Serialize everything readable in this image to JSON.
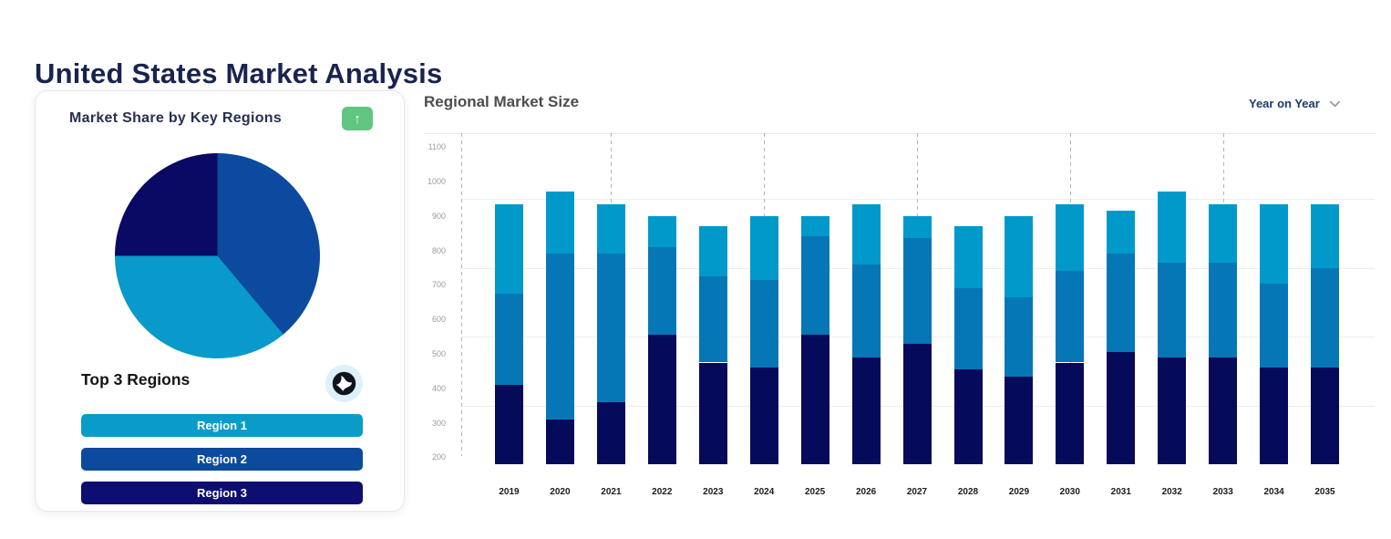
{
  "page": {
    "title": "United States Market Analysis"
  },
  "card": {
    "title": "Market Share by Key Regions",
    "trend_button": {
      "icon": "arrow-up",
      "color": "#5fc57f",
      "glyph": "↑"
    },
    "subheading": "Top 3 Regions",
    "globe_button": {
      "icon": "globe"
    },
    "legend": [
      {
        "label": "Region 1",
        "color": "#0a9cc9"
      },
      {
        "label": "Region 2",
        "color": "#0b4a9c"
      },
      {
        "label": "Region 3",
        "color": "#0d0d72"
      }
    ]
  },
  "regional": {
    "title": "Regional Market Size",
    "dropdown": {
      "label": "Year on Year",
      "icon": "chevron-down"
    }
  },
  "chart_data": [
    {
      "type": "pie",
      "title": "Market Share by Key Regions",
      "slices": [
        {
          "label": "Region 2",
          "color": "#0b4a9e",
          "start_deg": 0,
          "end_deg": 140,
          "share_pct": 38.9
        },
        {
          "label": "Region 1",
          "color": "#0999ca",
          "start_deg": 140,
          "end_deg": 270,
          "share_pct": 36.1
        },
        {
          "label": "Region 3",
          "color": "#0a0a64",
          "start_deg": 270,
          "end_deg": 360,
          "share_pct": 25.0
        }
      ]
    },
    {
      "type": "bar",
      "stacked": true,
      "title": "Regional Market Size",
      "categories": [
        "2019",
        "2020",
        "2021",
        "2022",
        "2023",
        "2024",
        "2025",
        "2026",
        "2027",
        "2028",
        "2029",
        "2030",
        "2031",
        "2032",
        "2033",
        "2034",
        "2035"
      ],
      "baseline": 200,
      "ylim": [
        180,
        1140
      ],
      "y_ticks": [
        200,
        300,
        400,
        500,
        600,
        700,
        800,
        900,
        1000,
        1100
      ],
      "h_gridline_values": [
        950,
        750,
        550,
        350
      ],
      "dashed_vline_years": [
        "2021",
        "2024",
        "2027",
        "2030",
        "2033"
      ],
      "grid": true,
      "legend_position": "none",
      "series": [
        {
          "name": "Region 3",
          "position": "bottom",
          "color": "#050a5a",
          "cumulative_top": [
            410,
            310,
            360,
            555,
            475,
            460,
            555,
            490,
            530,
            455,
            435,
            475,
            505,
            490,
            490,
            460,
            460
          ]
        },
        {
          "name": "Region 2",
          "position": "middle",
          "color": "#0677b6",
          "cumulative_top": [
            675,
            790,
            790,
            810,
            725,
            715,
            840,
            760,
            835,
            690,
            665,
            740,
            790,
            765,
            765,
            705,
            750
          ]
        },
        {
          "name": "Region 1",
          "position": "top",
          "color": "#0199ca",
          "cumulative_top": [
            935,
            970,
            935,
            900,
            870,
            900,
            900,
            935,
            900,
            870,
            900,
            935,
            915,
            970,
            935,
            935,
            935
          ]
        }
      ]
    }
  ]
}
